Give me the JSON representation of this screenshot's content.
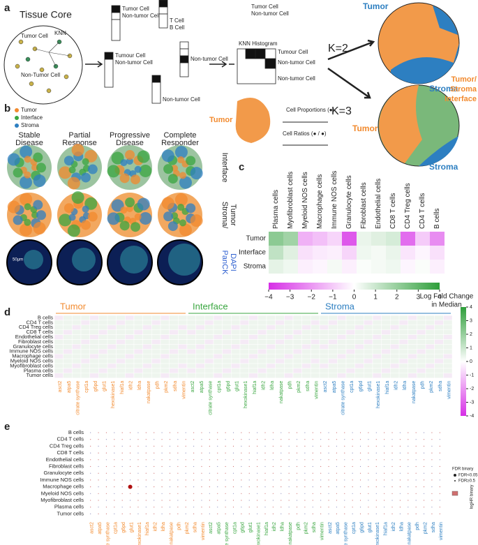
{
  "panel_a": {
    "label": "a",
    "title": "Tissue Core",
    "tumor_cell": "Tumor Cell",
    "knn": "KNN",
    "non_tumor_cell": "Non-Tumor Cell",
    "table_labels": [
      "Tumor Cell",
      "Non-tumor Cell",
      "T Cell",
      "B Cell",
      "Tumour Cell",
      "Non-tumor Cell",
      "Non-tumor Cell",
      "Non-tumor Cell"
    ],
    "histogram_title": "KNN Histogram",
    "histogram_labels": [
      "Tumour Cell",
      "Non-tumor Cell",
      "Non-tumor Cell"
    ],
    "top_labels": [
      "Tumor Cell",
      "Non-tumor Cell"
    ],
    "k2": "K=2",
    "k3": "K=3",
    "tumor": "Tumor",
    "stroma": "Stroma",
    "interface": [
      "Tumor/",
      "Stroma",
      "Interface"
    ],
    "blob_tumor": "Tumor",
    "cell_proportions": "Cell Proportions (●)",
    "cell_ratios": "Cell Ratios (● / ●)"
  },
  "panel_b": {
    "label": "b",
    "legend": [
      "Tumor",
      "Interface",
      "Stroma"
    ],
    "columns": [
      [
        "Stable",
        "Disease"
      ],
      [
        "Partial",
        "Response"
      ],
      [
        "Progressive",
        "Disease"
      ],
      [
        "Complete",
        "Responder"
      ]
    ],
    "rows": [
      [
        "Interface"
      ],
      [
        "Stroma/",
        "Tumor"
      ],
      [
        "PanCK",
        "DAPI"
      ]
    ],
    "scale": "50μm"
  },
  "panel_c": {
    "label": "c",
    "columns": [
      "Plasma cells",
      "Myofibroblast cells",
      "Myeloid NOS cells",
      "Macrophage cells",
      "Immune NOS cells",
      "Granulocyte cells",
      "Fibroblast cells",
      "Endothelial cells",
      "CD8 T cells",
      "CD4 Treg cells",
      "CD4 T cells",
      "B cells"
    ],
    "rows": [
      "Tumor",
      "Interface",
      "Stroma"
    ],
    "values": [
      [
        2.2,
        1.8,
        -1.5,
        -1.2,
        -0.8,
        -3.2,
        0.4,
        0.6,
        0.8,
        -2.8,
        -1.0,
        -2.2
      ],
      [
        1.2,
        0.6,
        -0.6,
        -0.4,
        -0.3,
        -0.8,
        0.3,
        0.2,
        0.4,
        -0.5,
        -0.2,
        -0.6
      ],
      [
        0.5,
        0.3,
        -0.3,
        -0.2,
        0.2,
        -0.3,
        0.1,
        0.2,
        0.3,
        -0.2,
        0.1,
        -0.3
      ]
    ],
    "range": [
      -4,
      4
    ],
    "ticks": [
      {
        "value": -4,
        "label": "−4"
      },
      {
        "value": -3,
        "label": "−3"
      },
      {
        "value": -2,
        "label": "−2"
      },
      {
        "value": -1,
        "label": "−1"
      },
      0,
      1,
      2,
      3,
      4
    ],
    "colorbar_title": [
      "Log Fold Change",
      "in Median"
    ]
  },
  "panel_d": {
    "label": "d",
    "groups": [
      "Tumor",
      "Interface",
      "Stroma"
    ],
    "rows": [
      "B cells",
      "CD4 T cells",
      "CD4 Treg cells",
      "CD8 T cells",
      "Endothelial cells",
      "Fibroblast cells",
      "Granulocyte cells",
      "Immune NOS cells",
      "Macrophage cells",
      "Myeloid NOS cells",
      "Myofibroblast cells",
      "Plasma cells",
      "Tumor cells"
    ],
    "markers": [
      "asct2",
      "atpa5",
      "citrate synthase",
      "cpt1a",
      "g6pd",
      "glut1",
      "hexokinase1",
      "hiaf1a",
      "idh2",
      "ldha",
      "nakatpase",
      "pdh",
      "pkm2",
      "sdha",
      "vimentin"
    ],
    "range": [
      -4,
      4
    ],
    "ticks": [
      4,
      3,
      2,
      1,
      0,
      -1,
      -2,
      -3,
      -4
    ]
  },
  "panel_e": {
    "label": "e",
    "legend_title": "FDR binary",
    "legend": [
      "FDR<0.05",
      "FDR≥0.5"
    ],
    "color_title": "logHR binary"
  }
}
